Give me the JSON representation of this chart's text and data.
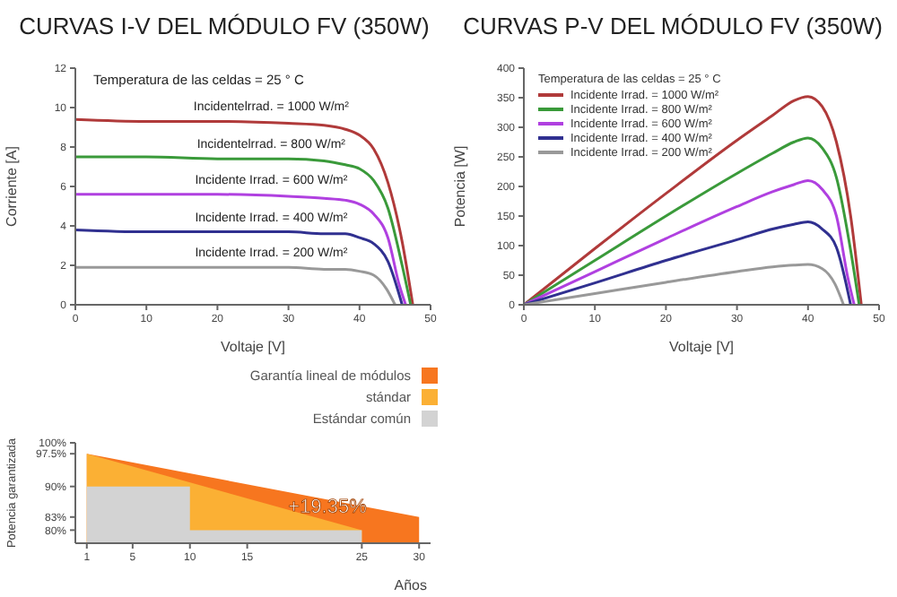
{
  "chart_data": [
    {
      "type": "line",
      "title": "CURVAS I-V DEL MÓDULO FV (350W)",
      "xlabel": "Voltaje [V]",
      "ylabel": "Corriente [A]",
      "xlim": [
        0,
        50
      ],
      "xticks": [
        0,
        10,
        20,
        30,
        40,
        50
      ],
      "ylim": [
        0,
        12
      ],
      "yticks": [
        0,
        2,
        4,
        6,
        8,
        10,
        12
      ],
      "legend": false,
      "grid": false,
      "marker": "none",
      "annotations": [
        "Temperatura de las celdas = 25 ° C"
      ],
      "series": [
        {
          "name": "Incidentelrrad. = 1000 W/m²",
          "color": "#b03a3a",
          "x": [
            0,
            10,
            20,
            30,
            35,
            38,
            40,
            42,
            44,
            46,
            47.5
          ],
          "values": [
            9.4,
            9.3,
            9.3,
            9.2,
            9.1,
            8.9,
            8.6,
            7.9,
            6.2,
            3.2,
            0
          ]
        },
        {
          "name": "Incidentelrrad. = 800 W/m²",
          "color": "#3a9a3a",
          "x": [
            0,
            10,
            20,
            30,
            35,
            38,
            40,
            42,
            44,
            46,
            47.2
          ],
          "values": [
            7.5,
            7.5,
            7.4,
            7.4,
            7.3,
            7.1,
            6.9,
            6.3,
            4.9,
            2,
            0
          ]
        },
        {
          "name": "Incidente Irrad. = 600 W/m²",
          "color": "#b040e0",
          "x": [
            0,
            10,
            20,
            30,
            35,
            38,
            40,
            42,
            44,
            45.6,
            46.5
          ],
          "values": [
            5.6,
            5.6,
            5.6,
            5.5,
            5.4,
            5.3,
            5.1,
            4.6,
            3.4,
            1,
            0
          ]
        },
        {
          "name": "Incidente Irrad. = 400 W/m²",
          "color": "#303090",
          "x": [
            0,
            10,
            20,
            30,
            35,
            38,
            40,
            42,
            44,
            46
          ],
          "values": [
            3.8,
            3.7,
            3.7,
            3.7,
            3.6,
            3.6,
            3.4,
            3.1,
            2.2,
            0
          ]
        },
        {
          "name": "Incidente Irrad. = 200 W/m²",
          "color": "#999999",
          "x": [
            0,
            10,
            20,
            30,
            35,
            38,
            40,
            42,
            43.8,
            45
          ],
          "values": [
            1.9,
            1.9,
            1.9,
            1.9,
            1.8,
            1.8,
            1.7,
            1.5,
            0.8,
            0
          ]
        }
      ]
    },
    {
      "type": "line",
      "title": "CURVAS P-V DEL MÓDULO FV (350W)",
      "xlabel": "Voltaje [V]",
      "ylabel": "Potencia [W]",
      "legend_title": "Temperatura de las celdas = 25 ° C",
      "xlim": [
        0,
        50
      ],
      "xticks": [
        0,
        10,
        20,
        30,
        40,
        50
      ],
      "ylim": [
        0,
        400
      ],
      "yticks": [
        0,
        50,
        100,
        150,
        200,
        250,
        300,
        350,
        400
      ],
      "legend": "top left",
      "grid": false,
      "marker": "none",
      "series": [
        {
          "name": "Incidente Irrad. = 1000 W/m²",
          "color": "#b03a3a",
          "x": [
            0,
            10,
            20,
            30,
            35,
            38,
            40,
            42,
            44,
            46,
            47.5
          ],
          "values": [
            0,
            95,
            188,
            278,
            320,
            345,
            352,
            335,
            275,
            150,
            0
          ]
        },
        {
          "name": "Incidente Irrad. = 800 W/m²",
          "color": "#3a9a3a",
          "x": [
            0,
            10,
            20,
            30,
            35,
            38,
            40,
            42,
            44,
            46,
            47.2
          ],
          "values": [
            0,
            75,
            150,
            222,
            256,
            275,
            282,
            265,
            215,
            92,
            0
          ]
        },
        {
          "name": "Incidente Irrad. = 600 W/m²",
          "color": "#b040e0",
          "x": [
            0,
            10,
            20,
            30,
            35,
            38,
            40,
            42,
            44,
            45.6,
            46.5
          ],
          "values": [
            0,
            56,
            112,
            166,
            191,
            203,
            210,
            195,
            150,
            46,
            0
          ]
        },
        {
          "name": "Incidente Irrad. = 400 W/m²",
          "color": "#303090",
          "x": [
            0,
            10,
            20,
            30,
            35,
            38,
            40,
            42,
            44,
            46
          ],
          "values": [
            0,
            37,
            75,
            110,
            128,
            136,
            140,
            128,
            97,
            0
          ]
        },
        {
          "name": "Incidente Irrad. = 200 W/m²",
          "color": "#999999",
          "x": [
            0,
            10,
            20,
            30,
            35,
            38,
            40,
            42,
            43.8,
            45
          ],
          "values": [
            0,
            19,
            38,
            56,
            64,
            67,
            68,
            61,
            35,
            0
          ]
        }
      ]
    },
    {
      "type": "area",
      "xlabel": "Años",
      "ylabel": "Potencia garantizada",
      "xlim": [
        0,
        31
      ],
      "xticks": [
        1,
        5,
        10,
        15,
        25,
        30
      ],
      "ylim": [
        77,
        100
      ],
      "yticks": [
        {
          "value": 80,
          "label": "80%"
        },
        {
          "value": 83,
          "label": "83%"
        },
        {
          "value": 90,
          "label": "90%"
        },
        {
          "value": 97.5,
          "label": "97.5%"
        },
        {
          "value": 100,
          "label": "100%"
        }
      ],
      "legend": "top right",
      "grid": false,
      "annotations": [
        {
          "text": "+19.35%",
          "x": 22,
          "y": 85.5
        }
      ],
      "series": [
        {
          "name": "Garantía lineal de módulos",
          "color": "#f7761f",
          "x": [
            1,
            30
          ],
          "values": [
            97.5,
            83
          ]
        },
        {
          "name": "stándar",
          "color": "#fbb034",
          "x": [
            1,
            25
          ],
          "values": [
            97.5,
            80
          ]
        },
        {
          "name": "Estándar común",
          "color": "#d3d3d3",
          "x": [
            1,
            10,
            10,
            25
          ],
          "values": [
            90,
            90,
            80,
            80
          ]
        }
      ]
    }
  ]
}
